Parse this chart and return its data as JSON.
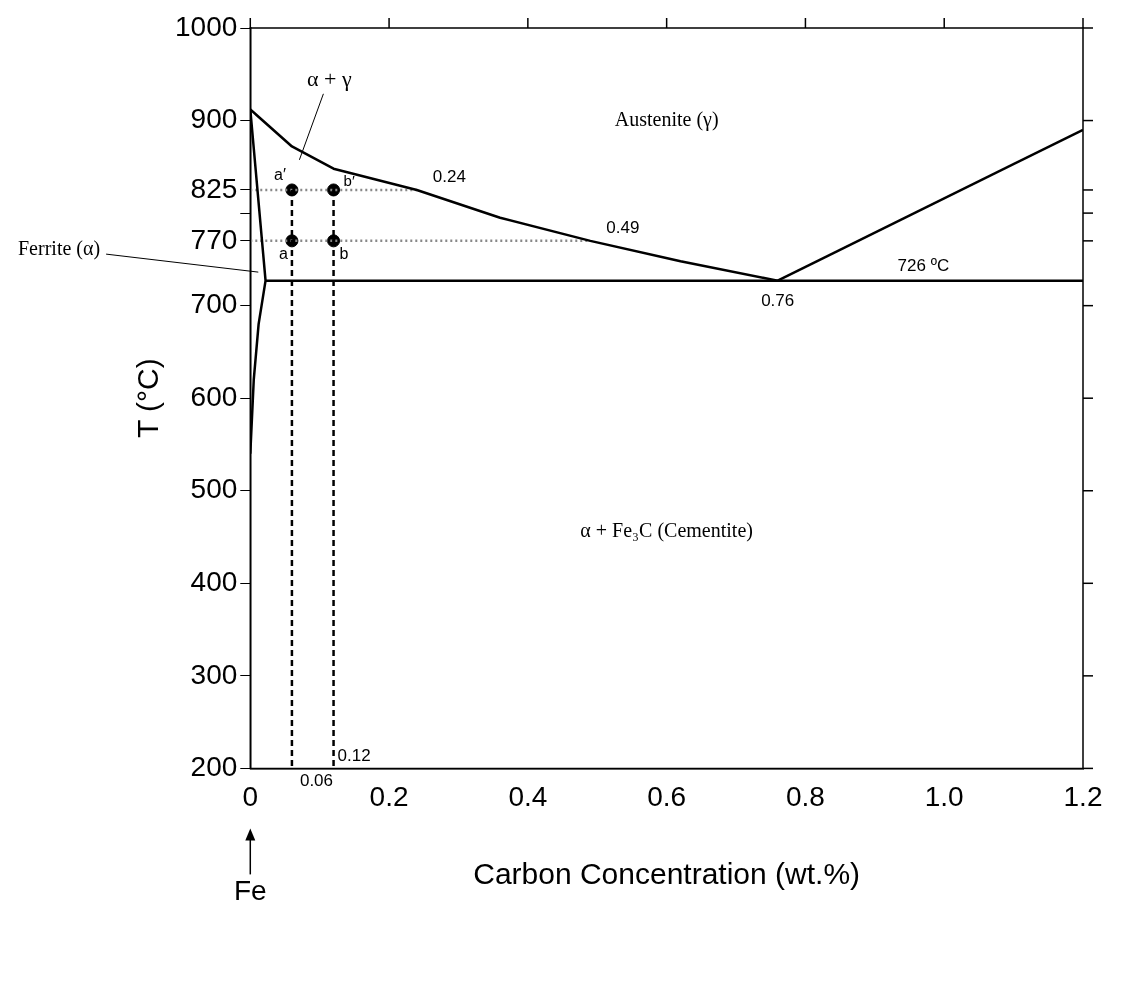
{
  "chart_data": {
    "type": "line",
    "xlabel": "Carbon Concentration (wt.%)",
    "ylabel": "T (°C)",
    "xlim": [
      0,
      1.2
    ],
    "ylim": [
      200,
      1000
    ],
    "xticks": [
      0,
      0.2,
      0.4,
      0.6,
      0.8,
      {
        "value": 1,
        "label": "1.0"
      },
      1.2
    ],
    "yticks": [
      200,
      300,
      400,
      500,
      600,
      700,
      770,
      {
        "value": 800,
        "label": null
      },
      825,
      900,
      1000
    ],
    "grid": false,
    "legend": false,
    "marker": "none",
    "series": [
      {
        "color": "#000000",
        "x": [
          0,
          0.06,
          0.12,
          0.24,
          0.36,
          0.49,
          0.62,
          0.76
        ],
        "values": [
          912,
          872,
          848,
          825,
          795,
          770,
          748,
          727
        ]
      },
      {
        "color": "#000000",
        "x": [
          0.76,
          1.2
        ],
        "values": [
          727,
          890
        ]
      },
      {
        "color": "#000000",
        "x": [
          0.022,
          1.2
        ],
        "values": [
          727,
          727
        ]
      },
      {
        "color": "#000000",
        "x": [
          0,
          0.022,
          0.012,
          0.005,
          0
        ],
        "values": [
          912,
          727,
          680,
          620,
          540
        ]
      },
      {
        "color": "#000000",
        "x": [
          0.06,
          0.06
        ],
        "values": [
          825,
          200
        ],
        "line_style": "dashed"
      },
      {
        "color": "#000000",
        "x": [
          0.12,
          0.12
        ],
        "values": [
          825,
          200
        ],
        "line_style": "dashed"
      },
      {
        "color": "#888888",
        "x": [
          0,
          0.24
        ],
        "values": [
          825,
          825
        ],
        "line_style": "dotted"
      },
      {
        "color": "#888888",
        "x": [
          0,
          0.49
        ],
        "values": [
          770,
          770
        ],
        "line_style": "dotted"
      },
      {
        "type": "scatter",
        "color": "#000000",
        "marker": "circle",
        "x": [
          0.06,
          0.12,
          0.06,
          0.12
        ],
        "values": [
          825,
          825,
          770,
          770
        ]
      }
    ],
    "annotations": [
      "α + γ",
      "Austenite (γ)",
      "Ferrite (α)",
      "α + Fe₃C (Cementite)",
      {
        "text": "0.24",
        "x": 0.24,
        "y": 825
      },
      {
        "text": "0.49",
        "x": 0.49,
        "y": 770
      },
      {
        "text": "0.76",
        "x": 0.76,
        "y": 727
      },
      {
        "text": "726 ºC",
        "x": 0.97,
        "y": 727
      },
      {
        "text": "0.06",
        "x": 0.06,
        "y": 200
      },
      {
        "text": "0.12",
        "x": 0.12,
        "y": 200
      },
      {
        "text": "a′",
        "x": 0.06,
        "y": 825
      },
      {
        "text": "b′",
        "x": 0.12,
        "y": 825
      },
      {
        "text": "a",
        "x": 0.06,
        "y": 770
      },
      {
        "text": "b",
        "x": 0.12,
        "y": 770
      },
      "Fe"
    ]
  }
}
